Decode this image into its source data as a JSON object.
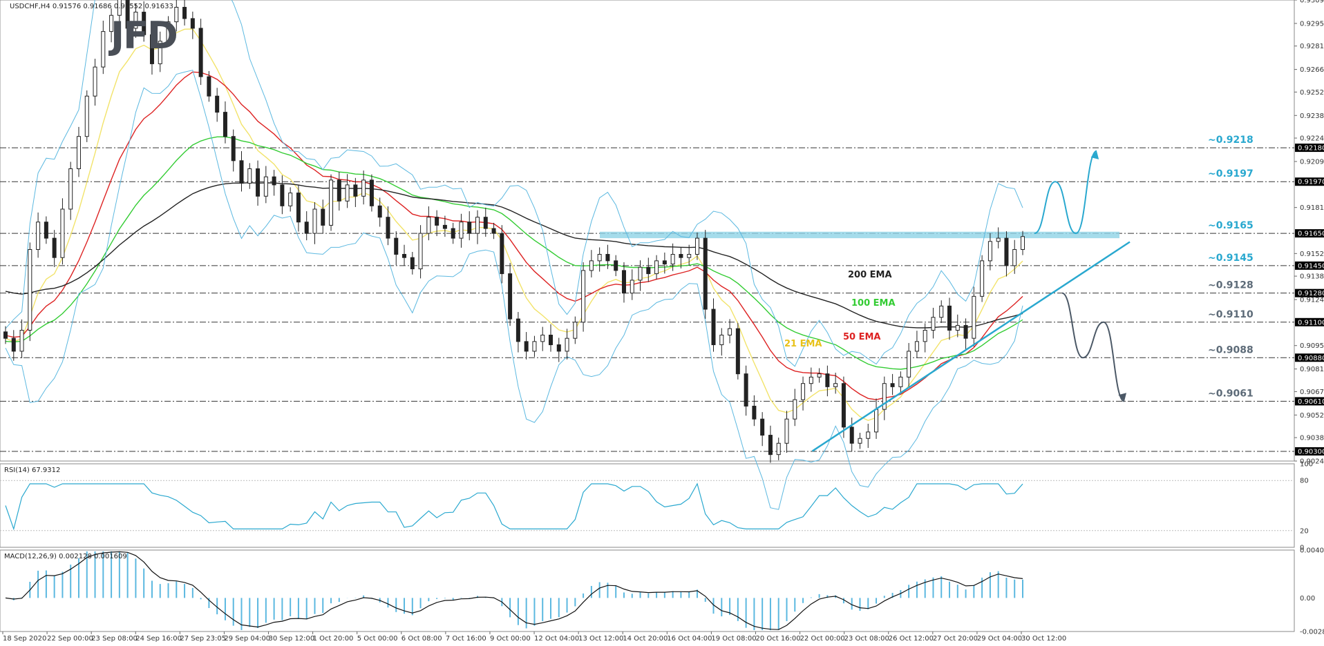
{
  "chart_data": {
    "type": "candlestick",
    "symbol_info": "USDCHF,H4  0.91576 0.91686 0.91552 0.91633",
    "logo": "JFD",
    "price_panel": {
      "ylim": [
        0.9024,
        0.93095
      ],
      "tick_labels": [
        "0.93095",
        "0.92950",
        "0.92810",
        "0.92665",
        "0.92525",
        "0.92380",
        "0.92240",
        "0.92095",
        "0.91810",
        "0.91525",
        "0.91385",
        "0.91240",
        "0.90955",
        "0.90810",
        "0.90670",
        "0.90525",
        "0.90385",
        "0.90240"
      ],
      "level_tags": [
        "0.92180",
        "0.91970",
        "0.91650",
        "0.91450",
        "0.91280",
        "0.91100",
        "0.90880",
        "0.90610",
        "0.90300"
      ],
      "levels": [
        {
          "value": 0.9218,
          "label": "~0.9218",
          "color": "#29a8cf"
        },
        {
          "value": 0.9197,
          "label": "~0.9197",
          "color": "#29a8cf"
        },
        {
          "value": 0.9165,
          "label": "~0.9165",
          "color": "#29a8cf"
        },
        {
          "value": 0.9145,
          "label": "~0.9145",
          "color": "#29a8cf"
        },
        {
          "value": 0.9128,
          "label": "~0.9128",
          "color": "#5d6b78"
        },
        {
          "value": 0.911,
          "label": "~0.9110",
          "color": "#5d6b78"
        },
        {
          "value": 0.9088,
          "label": "~0.9088",
          "color": "#5d6b78"
        },
        {
          "value": 0.9061,
          "label": "~0.9061",
          "color": "#5d6b78"
        },
        {
          "value": 0.903,
          "label": "",
          "color": "#5d6b78"
        }
      ],
      "ema_labels": [
        {
          "name": "200 EMA",
          "color": "#222222"
        },
        {
          "name": "100 EMA",
          "color": "#33cc33"
        },
        {
          "name": "50 EMA",
          "color": "#dd2222"
        },
        {
          "name": "21 EMA",
          "color": "#e8c21a"
        }
      ],
      "closes": [
        0.91,
        0.9092,
        0.9105,
        0.9155,
        0.9172,
        0.9162,
        0.915,
        0.918,
        0.9205,
        0.9225,
        0.925,
        0.9268,
        0.929,
        0.93,
        0.931,
        0.9292,
        0.9302,
        0.9288,
        0.927,
        0.9284,
        0.9296,
        0.9305,
        0.9298,
        0.9292,
        0.9262,
        0.925,
        0.924,
        0.9225,
        0.921,
        0.9196,
        0.9205,
        0.9188,
        0.92,
        0.9195,
        0.9182,
        0.919,
        0.9172,
        0.9165,
        0.918,
        0.917,
        0.9198,
        0.9185,
        0.9195,
        0.9188,
        0.9198,
        0.9182,
        0.9175,
        0.9162,
        0.9152,
        0.915,
        0.9143,
        0.9165,
        0.9175,
        0.917,
        0.9168,
        0.9162,
        0.9172,
        0.9165,
        0.9175,
        0.9168,
        0.9165,
        0.914,
        0.9112,
        0.9098,
        0.9092,
        0.9098,
        0.9102,
        0.9096,
        0.9092,
        0.91,
        0.911,
        0.9142,
        0.9148,
        0.9152,
        0.9148,
        0.9142,
        0.9128,
        0.9136,
        0.9144,
        0.914,
        0.9148,
        0.9146,
        0.9152,
        0.915,
        0.9152,
        0.9162,
        0.9118,
        0.9096,
        0.9102,
        0.9106,
        0.9078,
        0.9058,
        0.905,
        0.904,
        0.9028,
        0.9035,
        0.905,
        0.9062,
        0.9072,
        0.9076,
        0.9078,
        0.907,
        0.9072,
        0.9045,
        0.9035,
        0.9038,
        0.9042,
        0.9056,
        0.9072,
        0.907,
        0.9076,
        0.9092,
        0.9098,
        0.9105,
        0.9113,
        0.912,
        0.9105,
        0.9108,
        0.91,
        0.9126,
        0.9148,
        0.916,
        0.9162,
        0.9145,
        0.9155,
        0.9163
      ],
      "trendline": {
        "from_index": 100,
        "from_value": 0.9033,
        "to_index": 125,
        "to_value": 0.9116
      },
      "scenario_up": [
        0.9165,
        0.9197,
        0.9165,
        0.9216
      ],
      "scenario_down": [
        0.9128,
        0.9088,
        0.911,
        0.9061
      ]
    },
    "rsi_panel": {
      "label": "RSI(14) 67.9312",
      "ylim": [
        0,
        100
      ],
      "tick_labels": [
        "100",
        "80",
        "20",
        "0"
      ],
      "levels": [
        80,
        20
      ]
    },
    "macd_panel": {
      "label": "MACD(12,26,9) 0.002128 0.001609",
      "ylim": [
        -0.002812,
        0.00401
      ],
      "tick_labels": [
        "0.00401",
        "0.00",
        "-0.002812"
      ]
    },
    "x_tick_labels": [
      "18 Sep 2020",
      "22 Sep 00:00",
      "23 Sep 08:00",
      "24 Sep 16:00",
      "27 Sep 23:05",
      "29 Sep 04:00",
      "30 Sep 12:00",
      "1 Oct 20:00",
      "5 Oct 00:00",
      "6 Oct 08:00",
      "7 Oct 16:00",
      "9 Oct 00:00",
      "12 Oct 04:00",
      "13 Oct 12:00",
      "14 Oct 20:00",
      "16 Oct 04:00",
      "19 Oct 08:00",
      "20 Oct 16:00",
      "22 Oct 00:00",
      "23 Oct 08:00",
      "26 Oct 12:00",
      "27 Oct 20:00",
      "29 Oct 04:00",
      "30 Oct 12:00"
    ]
  }
}
